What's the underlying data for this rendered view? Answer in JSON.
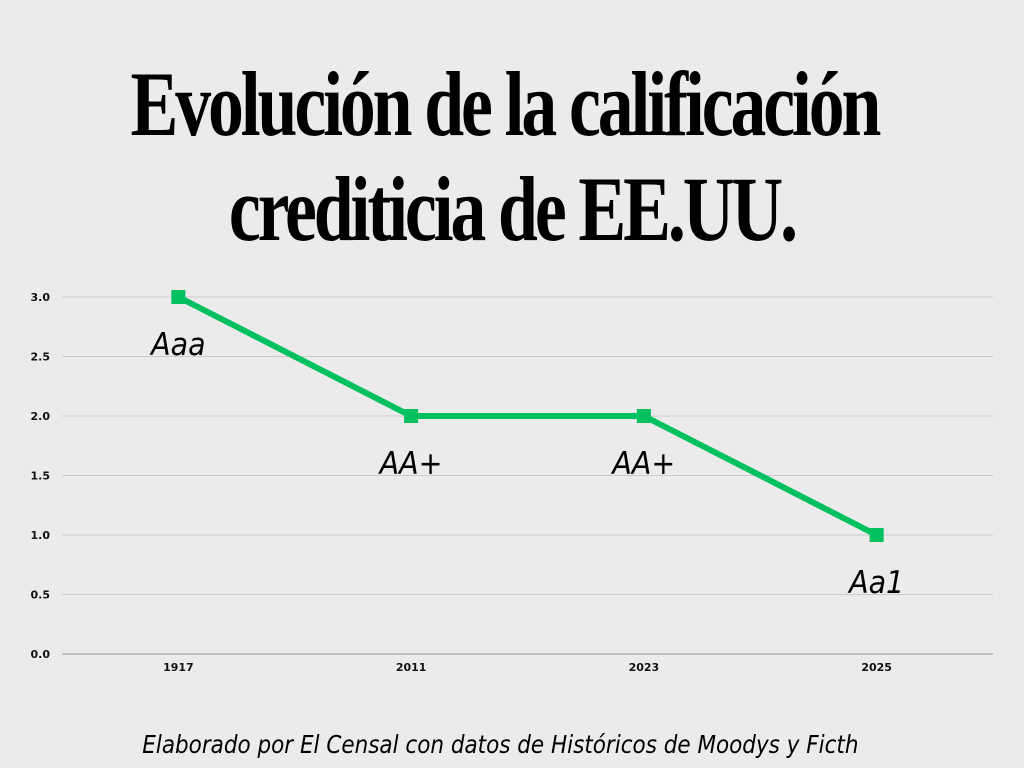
{
  "title_lines": [
    "Evolución de la calificación",
    "crediticia de EE.UU."
  ],
  "source": "Elaborado por El Censal con datos de Históricos de Moodys y Ficth",
  "colors": {
    "line": "#00c060",
    "grid": "#cccccc",
    "background": "#ebebeb"
  },
  "chart_data": {
    "type": "line",
    "title": "Evolución de la calificación crediticia de EE.UU.",
    "categories": [
      "1917",
      "2011",
      "2023",
      "2025"
    ],
    "values": [
      3,
      2,
      2,
      1
    ],
    "point_labels": [
      "Aaa",
      "AA+",
      "AA+",
      "Aa1"
    ],
    "ylim": [
      0,
      3
    ],
    "yticks": [
      "0.0",
      "0.5",
      "1.0",
      "1.5",
      "2.0",
      "2.5",
      "3.0"
    ],
    "grid": true,
    "xlabel": "",
    "ylabel": ""
  }
}
